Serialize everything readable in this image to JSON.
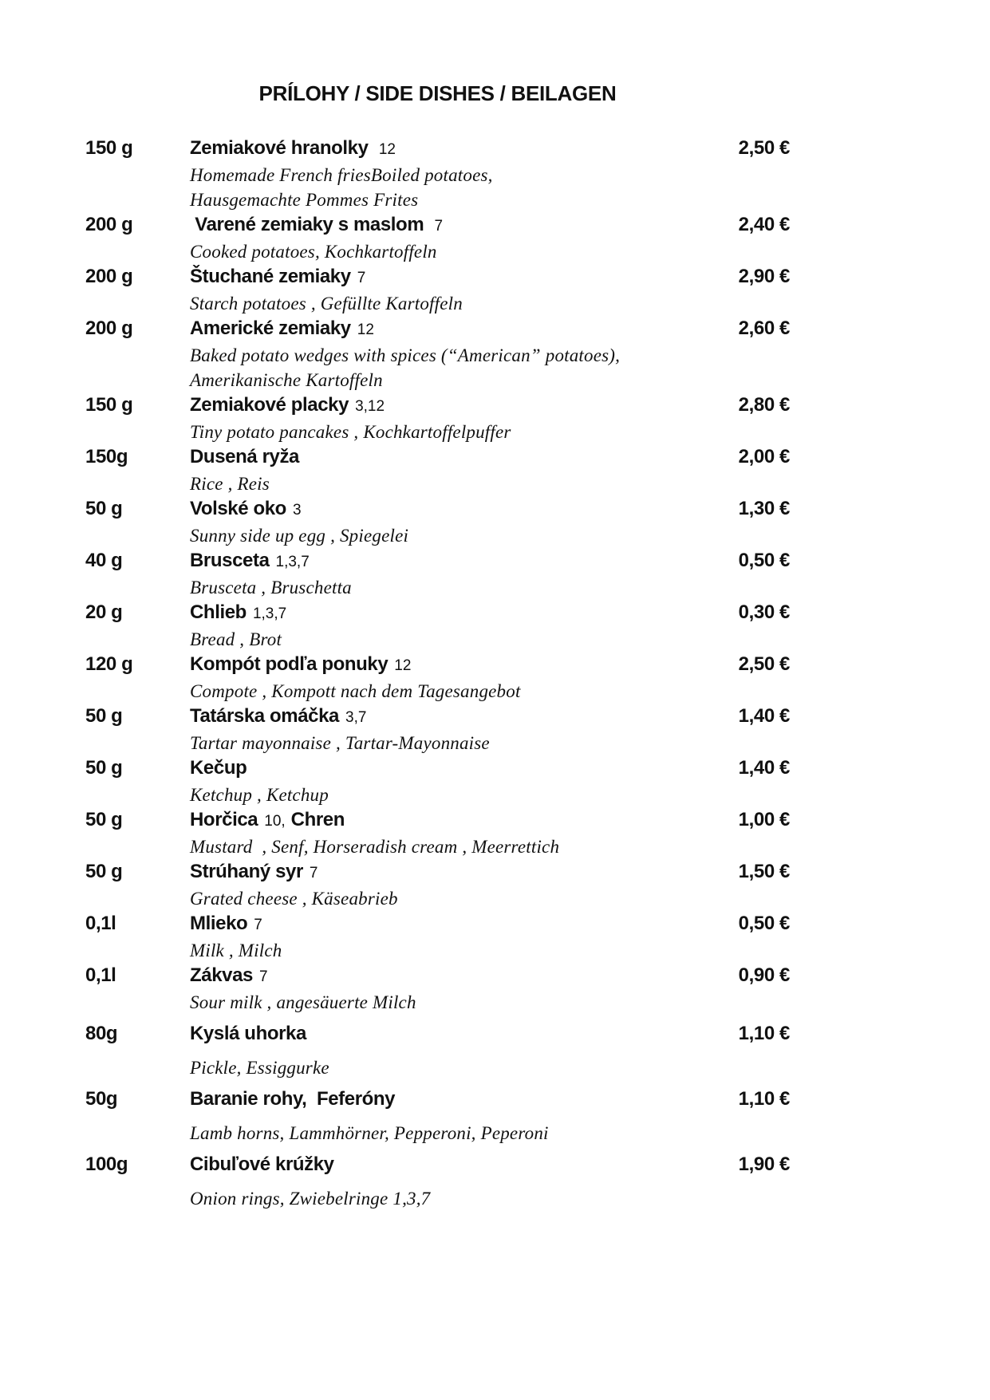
{
  "page": {
    "background_color": "#ffffff",
    "text_color": "#111111"
  },
  "title": "PRÍLOHY / SIDE DISHES / BEILAGEN",
  "menu": {
    "currency": "€",
    "items": [
      {
        "weight": "150 g",
        "name": "Zemiakové hranolky",
        "allergens": " 12",
        "desc": [
          "Homemade French friesBoiled potatoes,",
          "Hausgemachte Pommes Frites"
        ],
        "price": "2,50 €"
      },
      {
        "weight": "200 g",
        "name": " Varené zemiaky s maslom",
        "allergens": " 7",
        "desc": [
          "Cooked potatoes, Kochkartoffeln"
        ],
        "price": "2,40 €"
      },
      {
        "weight": "200 g",
        "name": "Štuchané zemiaky",
        "allergens": "7",
        "desc": [
          "Starch potatoes , Gefüllte Kartoffeln"
        ],
        "price": "2,90 €"
      },
      {
        "weight": "200 g",
        "name": "Americké zemiaky",
        "allergens": "12",
        "desc": [
          "Baked potato wedges with spices (“American” potatoes),",
          "Amerikanische Kartoffeln"
        ],
        "price": "2,60 €"
      },
      {
        "weight": "150 g",
        "name": "Zemiakové placky",
        "allergens": "3,12",
        "desc": [
          "Tiny potato pancakes , Kochkartoffelpuffer"
        ],
        "price": "2,80 €"
      },
      {
        "weight": "150g",
        "name": "Dusená ryža",
        "allergens": "",
        "desc": [
          "Rice , Reis"
        ],
        "price": "2,00 €"
      },
      {
        "weight": "50 g",
        "name": "Volské oko",
        "allergens": "3",
        "desc": [
          "Sunny side up egg , Spiegelei"
        ],
        "price": "1,30 €"
      },
      {
        "weight": "40 g",
        "name": "Brusceta",
        "allergens": "1,3,7",
        "desc": [
          "Brusceta , Bruschetta"
        ],
        "price": "0,50 €"
      },
      {
        "weight": "20 g",
        "name": "Chlieb",
        "allergens": "1,3,7",
        "desc": [
          "Bread , Brot"
        ],
        "price": "0,30 €"
      },
      {
        "weight": "120 g",
        "name": "Kompót podľa ponuky",
        "allergens": "12",
        "desc": [
          "Compote , Kompott nach dem Tagesangebot"
        ],
        "price": "2,50 €"
      },
      {
        "weight": "50 g",
        "name": "Tatárska omáčka",
        "allergens": "3,7",
        "desc": [
          "Tartar mayonnaise , Tartar-Mayonnaise"
        ],
        "price": "1,40 €"
      },
      {
        "weight": "50 g",
        "name": "Kečup",
        "allergens": "",
        "desc": [
          "Ketchup , Ketchup"
        ],
        "price": "1,40 €"
      },
      {
        "weight": "50 g",
        "name": "Horčica",
        "allergens": "10,",
        "name2": "Chren",
        "desc": [
          "Mustard  , Senf, Horseradish cream , Meerrettich"
        ],
        "price": "1,00 €"
      },
      {
        "weight": "50 g",
        "name": "Strúhaný syr",
        "allergens": "7",
        "desc": [
          "Grated cheese , Käseabrieb"
        ],
        "price": "1,50 €"
      },
      {
        "weight": "0,1l",
        "name": "Mlieko",
        "allergens": "7",
        "desc": [
          "Milk , Milch"
        ],
        "price": "0,50 €"
      },
      {
        "weight": "0,1l",
        "name": "Zákvas",
        "allergens": "7",
        "desc": [
          "Sour milk , angesäuerte Milch"
        ],
        "price": "0,90 €"
      },
      {
        "weight": "80g",
        "name": "Kyslá uhorka",
        "allergens": "",
        "desc": [
          "Pickle, Essiggurke"
        ],
        "price": "1,10 €",
        "spaced": true
      },
      {
        "weight": "50g",
        "name": "Baranie rohy,  Feferóny",
        "allergens": "",
        "desc": [
          "Lamb horns, Lammhörner, Pepperoni, Peperoni"
        ],
        "price": "1,10 €",
        "spaced": true
      },
      {
        "weight": "100g",
        "name": "Cibuľové krúžky",
        "allergens": "",
        "desc": [
          "Onion rings, Zwiebelringe 1,3,7"
        ],
        "price": "1,90 €",
        "spaced": true
      }
    ]
  }
}
